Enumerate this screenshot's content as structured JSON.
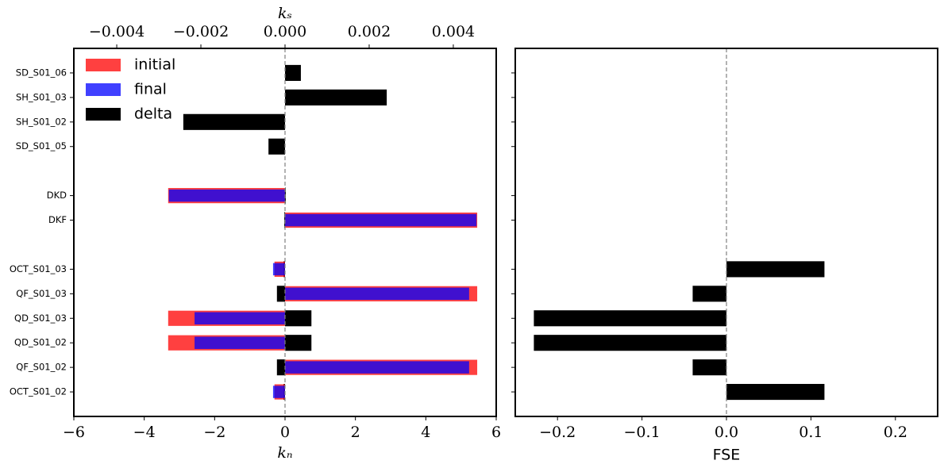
{
  "chart_data": [
    {
      "type": "bar",
      "orientation": "horizontal",
      "categories": [
        "OCT_S01_02",
        "QF_S01_02",
        "QD_S01_02",
        "QD_S01_03",
        "QF_S01_03",
        "OCT_S01_03",
        null,
        "DKF",
        "DKD",
        null,
        "SD_S01_05",
        "SH_S01_02",
        "SH_S01_03",
        "SD_S01_06"
      ],
      "series": [
        {
          "name": "initial",
          "color": "#ff0000",
          "alpha": 0.75,
          "values": [
            -0.3,
            5.46,
            -3.32,
            -3.32,
            5.46,
            -0.3,
            null,
            5.46,
            -3.32,
            null,
            null,
            null,
            null,
            null
          ]
        },
        {
          "name": "final",
          "color": "#0000ff",
          "alpha": 0.75,
          "values": [
            -0.34,
            5.23,
            -2.57,
            -2.57,
            5.23,
            -0.34,
            null,
            5.44,
            -3.3,
            null,
            null,
            null,
            null,
            null
          ]
        },
        {
          "name": "delta",
          "color": "#000000",
          "values": [
            -0.04,
            -0.23,
            0.75,
            0.75,
            -0.23,
            -0.04,
            null,
            -0.02,
            0.02,
            null,
            -0.47,
            -2.89,
            2.89,
            0.45
          ]
        }
      ],
      "xlabel": "kₙ",
      "xlim": [
        -6,
        6
      ],
      "xticks": [
        {
          "value": -6,
          "label": "−6"
        },
        {
          "value": -4,
          "label": "−4"
        },
        {
          "value": -2,
          "label": "−2"
        },
        0,
        2,
        4,
        6
      ],
      "x2label": "kₛ",
      "x2lim": [
        -0.00502,
        0.00502
      ],
      "x2ticks": [
        {
          "value": -0.004,
          "label": "−0.004"
        },
        {
          "value": -0.002,
          "label": "−0.002"
        },
        {
          "value": 0,
          "label": "0.000"
        },
        0.002,
        0.004
      ],
      "legend": "upper left"
    },
    {
      "type": "bar",
      "orientation": "horizontal",
      "color": "#000000",
      "values": [
        0.116,
        -0.04,
        -0.228,
        -0.228,
        -0.04,
        0.116,
        null,
        null,
        null,
        null,
        null,
        null,
        null,
        null
      ],
      "xlabel": "FSE",
      "xlim": [
        -0.25,
        0.25
      ],
      "xticks": [
        {
          "value": -0.2,
          "label": "−0.2"
        },
        {
          "value": -0.1,
          "label": "−0.1"
        },
        {
          "value": 0,
          "label": "0.0"
        },
        0.1,
        0.2
      ]
    }
  ]
}
